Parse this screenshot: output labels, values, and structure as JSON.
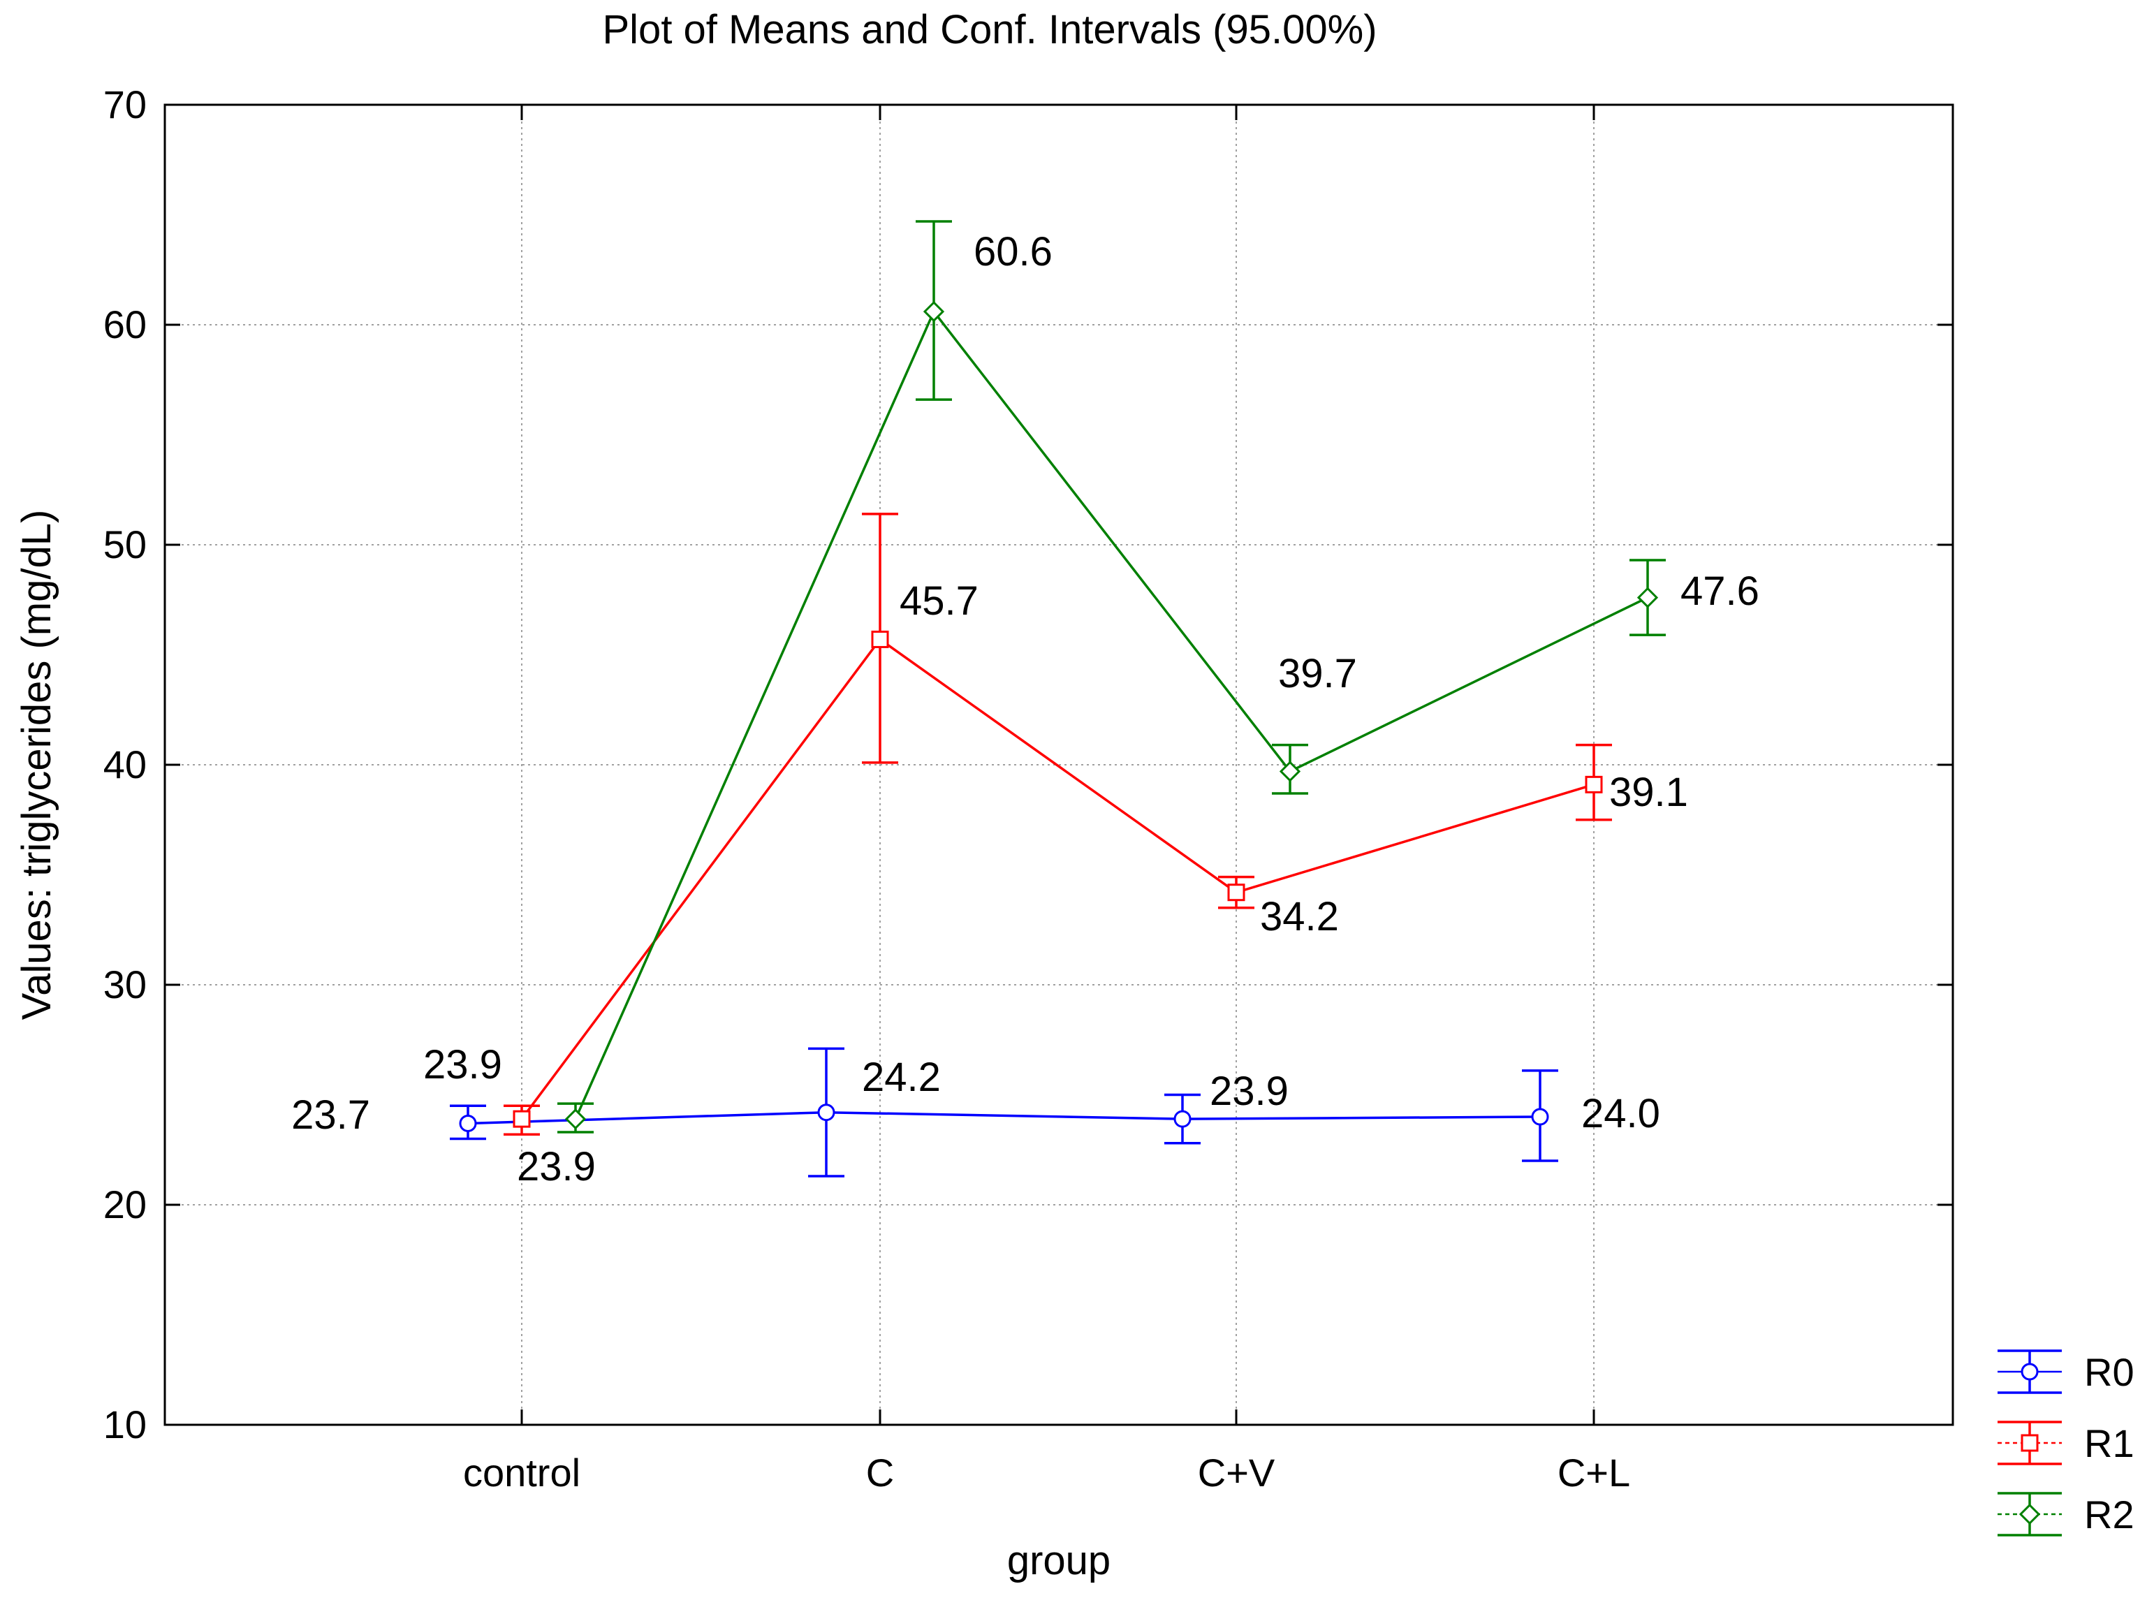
{
  "chart_data": {
    "type": "line",
    "title": "Plot of Means and Conf. Intervals (95.00%)",
    "xlabel": "group",
    "ylabel": "Values: triglycerides (mg/dL)",
    "categories": [
      "control",
      "C",
      "C+V",
      "C+L"
    ],
    "ylim": [
      10,
      70
    ],
    "yticks": [
      10,
      20,
      30,
      40,
      50,
      60,
      70
    ],
    "grid": true,
    "legend_position": "bottom-right",
    "series": [
      {
        "name": "R0",
        "color": "#0000ff",
        "marker": "circle",
        "values": [
          23.7,
          24.2,
          23.9,
          24.0
        ],
        "ci_low": [
          23.0,
          21.3,
          22.8,
          22.0
        ],
        "ci_high": [
          24.5,
          27.1,
          25.0,
          26.1
        ],
        "labels": [
          "23.7",
          "24.2",
          "23.9",
          "24.0"
        ]
      },
      {
        "name": "R1",
        "color": "#ff0000",
        "marker": "square",
        "values": [
          23.9,
          45.7,
          34.2,
          39.1
        ],
        "ci_low": [
          23.2,
          40.1,
          33.5,
          37.5
        ],
        "ci_high": [
          24.5,
          51.4,
          34.9,
          40.9
        ],
        "labels": [
          "23.9",
          "45.7",
          "34.2",
          "39.1"
        ]
      },
      {
        "name": "R2",
        "color": "#008000",
        "marker": "diamond",
        "values": [
          23.9,
          60.6,
          39.7,
          47.6
        ],
        "ci_low": [
          23.3,
          56.6,
          38.7,
          45.9
        ],
        "ci_high": [
          24.6,
          64.7,
          40.9,
          49.3
        ],
        "labels": [
          "23.9",
          "60.6",
          "39.7",
          "47.6"
        ]
      }
    ]
  }
}
